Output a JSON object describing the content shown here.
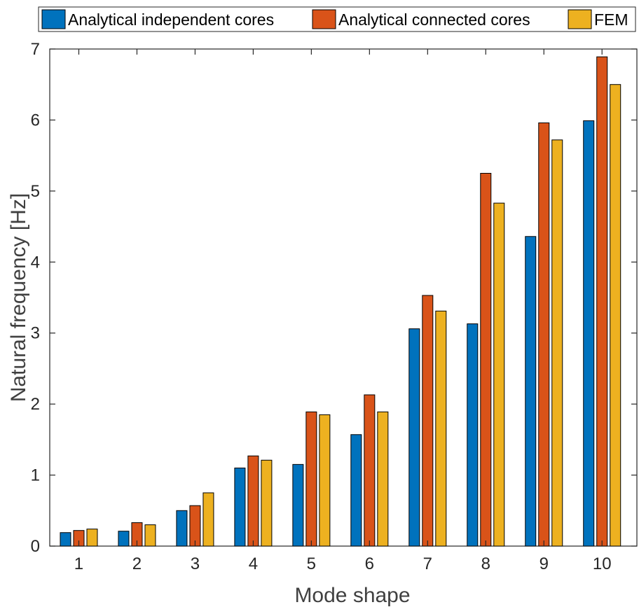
{
  "chart_data": {
    "type": "bar",
    "categories": [
      "1",
      "2",
      "3",
      "4",
      "5",
      "6",
      "7",
      "8",
      "9",
      "10"
    ],
    "series": [
      {
        "name": "Analytical independent cores",
        "color": "#0072BD",
        "values": [
          0.19,
          0.21,
          0.5,
          1.1,
          1.15,
          1.57,
          3.06,
          3.13,
          4.36,
          5.99
        ]
      },
      {
        "name": "Analytical connected cores",
        "color": "#D95319",
        "values": [
          0.22,
          0.33,
          0.57,
          1.27,
          1.89,
          2.13,
          3.53,
          5.25,
          5.96,
          6.89
        ]
      },
      {
        "name": "FEM",
        "color": "#EDB120",
        "values": [
          0.24,
          0.3,
          0.75,
          1.21,
          1.85,
          1.89,
          3.31,
          4.83,
          5.72,
          6.5
        ]
      }
    ],
    "title": "",
    "xlabel": "Mode shape",
    "ylabel": "Natural frequency [Hz]",
    "ylim": [
      0,
      7
    ],
    "yticks": [
      "0",
      "1",
      "2",
      "3",
      "4",
      "5",
      "6",
      "7"
    ],
    "grid": false,
    "legend_position": "top",
    "legend_orientation": "horizontal"
  }
}
